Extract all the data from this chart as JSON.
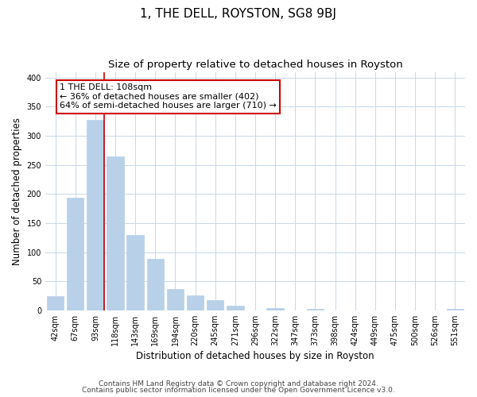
{
  "title": "1, THE DELL, ROYSTON, SG8 9BJ",
  "subtitle": "Size of property relative to detached houses in Royston",
  "xlabel": "Distribution of detached houses by size in Royston",
  "ylabel": "Number of detached properties",
  "bar_labels": [
    "42sqm",
    "67sqm",
    "93sqm",
    "118sqm",
    "143sqm",
    "169sqm",
    "194sqm",
    "220sqm",
    "245sqm",
    "271sqm",
    "296sqm",
    "322sqm",
    "347sqm",
    "373sqm",
    "398sqm",
    "424sqm",
    "449sqm",
    "475sqm",
    "500sqm",
    "526sqm",
    "551sqm"
  ],
  "bar_values": [
    25,
    193,
    328,
    265,
    130,
    88,
    37,
    26,
    17,
    8,
    0,
    4,
    0,
    3,
    0,
    0,
    0,
    0,
    0,
    0,
    3
  ],
  "bar_color": "#b8d0e8",
  "bar_edge_color": "#b8d0e8",
  "marker_bar_index": 2,
  "marker_color": "#cc0000",
  "ylim": [
    0,
    410
  ],
  "yticks": [
    0,
    50,
    100,
    150,
    200,
    250,
    300,
    350,
    400
  ],
  "annotation_title": "1 THE DELL: 108sqm",
  "annotation_line1": "← 36% of detached houses are smaller (402)",
  "annotation_line2": "64% of semi-detached houses are larger (710) →",
  "footnote1": "Contains HM Land Registry data © Crown copyright and database right 2024.",
  "footnote2": "Contains public sector information licensed under the Open Government Licence v3.0.",
  "background_color": "#ffffff",
  "grid_color": "#c8d8e8",
  "title_fontsize": 11,
  "subtitle_fontsize": 9.5,
  "axis_label_fontsize": 8.5,
  "tick_fontsize": 7,
  "annotation_fontsize": 8,
  "annotation_box_edge_color": "#cc0000",
  "annotation_box_face_color": "#ffffff",
  "footnote_fontsize": 6.5
}
